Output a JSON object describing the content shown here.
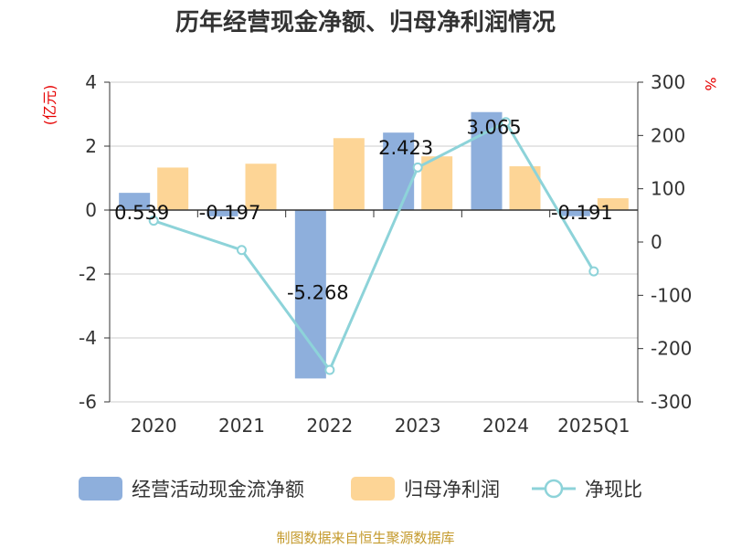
{
  "colors": {
    "cashflow": "#8eafdc",
    "netprofit": "#fdd596",
    "ratio": "#8dd3d9",
    "grid": "#cccccc",
    "axis": "#333333",
    "unit": "#e60000",
    "source": "#c49a2c"
  },
  "chart_data": {
    "type": "bar",
    "title": "历年经营现金净额、归母净利润情况",
    "categories": [
      "2020",
      "2021",
      "2022",
      "2023",
      "2024",
      "2025Q1"
    ],
    "y_left": {
      "unit": "(亿元)",
      "ylim": [
        -6,
        4
      ],
      "ticks": [
        4,
        2,
        0,
        -2,
        -4,
        -6
      ]
    },
    "y_right": {
      "unit": "%",
      "ylim": [
        -300,
        300
      ],
      "ticks": [
        300,
        200,
        100,
        0,
        -100,
        -200,
        -300
      ]
    },
    "series": [
      {
        "name": "经营活动现金流净额",
        "type": "bar",
        "axis": "left",
        "values": [
          0.539,
          -0.197,
          -5.268,
          2.423,
          3.065,
          -0.191
        ],
        "labels": [
          "0.539",
          "-0.197",
          "-5.268",
          "2.423",
          "3.065",
          "-0.191"
        ]
      },
      {
        "name": "归母净利润",
        "type": "bar",
        "axis": "left",
        "values": [
          1.33,
          1.45,
          2.25,
          1.68,
          1.37,
          0.37
        ]
      },
      {
        "name": "净现比",
        "type": "line",
        "axis": "right",
        "values": [
          40,
          -15,
          -240,
          140,
          225,
          -55
        ]
      }
    ],
    "grid": true,
    "legend_position": "bottom",
    "source": "制图数据来自恒生聚源数据库"
  }
}
